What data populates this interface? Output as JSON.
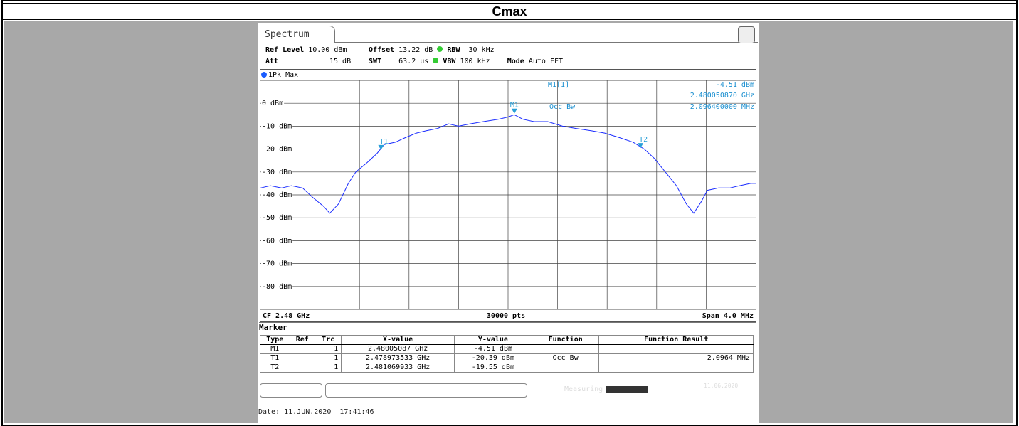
{
  "header": {
    "title": "Cmax"
  },
  "screen": {
    "tab": "Spectrum",
    "settings": {
      "ref_level": {
        "label": "Ref Level",
        "value": "10.00 dBm"
      },
      "offset": {
        "label": "Offset",
        "value": "13.22 dB"
      },
      "rbw": {
        "label": "RBW",
        "value": "30 kHz"
      },
      "att": {
        "label": "Att",
        "value": "15 dB"
      },
      "swt": {
        "label": "SWT",
        "value": "63.2 µs"
      },
      "vbw": {
        "label": "VBW",
        "value": "100 kHz"
      },
      "mode": {
        "label": "Mode",
        "value": "Auto FFT"
      }
    },
    "marker_table": {
      "title": "Marker",
      "columns": [
        "Type",
        "Ref",
        "Trc",
        "X-value",
        "Y-value",
        "Function",
        "Function Result"
      ],
      "rows": [
        [
          "M1",
          "",
          "1",
          "2.48005087 GHz",
          "-4.51 dBm",
          "",
          ""
        ],
        [
          "T1",
          "",
          "1",
          "2.478973533 GHz",
          "-20.39 dBm",
          "Occ Bw",
          "2.0964 MHz"
        ],
        [
          "T2",
          "",
          "1",
          "2.481069933 GHz",
          "-19.55 dBm",
          "",
          ""
        ]
      ]
    },
    "status": {
      "state": "Measuring",
      "date": "11.06.2020"
    },
    "date_line": "Date: 11.JUN.2020  17:41:46"
  },
  "chart_data": {
    "type": "line",
    "trace_label": "1Pk Max",
    "xlim": [
      2.478,
      2.482
    ],
    "ylim": [
      -90,
      10
    ],
    "yticks": [
      {
        "value": 0,
        "label": "0 dBm"
      },
      {
        "value": -10,
        "label": "-10 dBm"
      },
      {
        "value": -20,
        "label": "-20 dBm"
      },
      {
        "value": -30,
        "label": "-30 dBm"
      },
      {
        "value": -40,
        "label": "-40 dBm"
      },
      {
        "value": -50,
        "label": "-50 dBm"
      },
      {
        "value": -60,
        "label": "-60 dBm"
      },
      {
        "value": -70,
        "label": "-70 dBm"
      },
      {
        "value": -80,
        "label": "-80 dBm"
      }
    ],
    "xgrid_divisions": 10,
    "series": [
      {
        "name": "1Pk Max",
        "color": "#1a2cff",
        "x": [
          2.478,
          2.47808,
          2.47817,
          2.47825,
          2.47834,
          2.47842,
          2.47851,
          2.47856,
          2.47863,
          2.47871,
          2.47877,
          2.47886,
          2.47894,
          2.479,
          2.47909,
          2.47917,
          2.47926,
          2.47934,
          2.47943,
          2.47952,
          2.4796,
          2.47969,
          2.4798,
          2.47992,
          2.48,
          2.48005,
          2.48012,
          2.48021,
          2.48032,
          2.48044,
          2.48055,
          2.48067,
          2.48078,
          2.4809,
          2.48101,
          2.4811,
          2.48118,
          2.48127,
          2.48136,
          2.48144,
          2.4815,
          2.48156,
          2.48161,
          2.4817,
          2.48179,
          2.48187,
          2.48196,
          2.482
        ],
        "values": [
          -37,
          -36,
          -37,
          -36,
          -37,
          -41,
          -45,
          -48,
          -44,
          -35,
          -30,
          -26,
          -22,
          -18,
          -17,
          -15,
          -13,
          -12,
          -11,
          -9,
          -10,
          -9,
          -8,
          -7,
          -6,
          -5,
          -7,
          -8,
          -8,
          -10,
          -11,
          -12,
          -13,
          -15,
          -17,
          -20,
          -24,
          -30,
          -36,
          -44,
          -48,
          -43,
          -38,
          -37,
          -37,
          -36,
          -35,
          -35
        ]
      }
    ],
    "markers": [
      {
        "label": "M1",
        "x": 2.48005087,
        "y": -4.51
      },
      {
        "label": "T1",
        "x": 2.478973533,
        "y": -20.39
      },
      {
        "label": "T2",
        "x": 2.481069933,
        "y": -19.55
      }
    ],
    "readout": {
      "marker": "M1[1]",
      "level": "-4.51 dBm",
      "frequency": "2.480050870 GHz",
      "function": "Occ Bw",
      "result": "2.096400000 MHz"
    },
    "footer": {
      "left": "CF 2.48 GHz",
      "center": "30000 pts",
      "right": "Span 4.0 MHz"
    }
  }
}
